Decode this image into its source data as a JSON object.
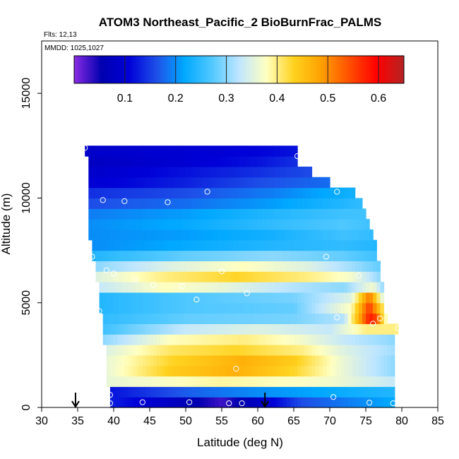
{
  "chart_data": {
    "type": "heatmap",
    "title": "ATOM3 Northeast_Pacific_2 BioBurnFrac_PALMS",
    "subtitle_flights": "Flts: 12,13",
    "subtitle_dates": "MMDD: 1025,1027",
    "xlabel": "Latitude (deg N)",
    "ylabel": "Altitude (m)",
    "xlim": [
      30,
      85
    ],
    "ylim": [
      0,
      17500
    ],
    "xticks": [
      30,
      35,
      40,
      45,
      50,
      55,
      60,
      65,
      70,
      75,
      80,
      85
    ],
    "yticks": [
      0,
      5000,
      10000,
      15000
    ],
    "colorbar": {
      "range": [
        0,
        0.65
      ],
      "ticks": [
        0.1,
        0.2,
        0.3,
        0.4,
        0.5,
        0.6
      ],
      "colors": [
        "#8a2be2",
        "#0000b0",
        "#0000d8",
        "#1e50e8",
        "#00a8ff",
        "#50c8ff",
        "#bfe6ff",
        "#ffffc0",
        "#ffd21e",
        "#ffa000",
        "#ff5000",
        "#ff0000",
        "#b42323"
      ]
    },
    "altitude_bins_m": [
      250,
      750,
      1250,
      1750,
      2250,
      2750,
      3250,
      3750,
      4250,
      4750,
      5250,
      5750,
      6250,
      6750,
      7250,
      7750,
      8250,
      8750,
      9250,
      9750,
      10250,
      10750,
      11250,
      11750,
      12250
    ],
    "profiles": [
      {
        "altitude": 250,
        "lat_range": [
          39.5,
          79
        ],
        "values": [
          [
            39.5,
            0.13
          ],
          [
            48,
            0.08
          ],
          [
            55,
            0.03
          ],
          [
            60,
            0.08
          ],
          [
            66,
            0.16
          ],
          [
            79,
            0.22
          ]
        ]
      },
      {
        "altitude": 750,
        "lat_range": [
          39.5,
          79
        ],
        "values": [
          [
            39.5,
            0.12
          ],
          [
            50,
            0.17
          ],
          [
            60,
            0.2
          ],
          [
            70,
            0.22
          ],
          [
            79,
            0.24
          ]
        ]
      },
      {
        "altitude": 1250,
        "lat_range": [
          39,
          79
        ],
        "values": [
          [
            39,
            0.36
          ],
          [
            55,
            0.39
          ],
          [
            70,
            0.37
          ],
          [
            79,
            0.33
          ]
        ]
      },
      {
        "altitude": 1750,
        "lat_range": [
          39,
          79
        ],
        "values": [
          [
            39,
            0.36
          ],
          [
            48,
            0.44
          ],
          [
            57,
            0.47
          ],
          [
            65,
            0.43
          ],
          [
            72,
            0.36
          ],
          [
            79,
            0.3
          ]
        ]
      },
      {
        "altitude": 2250,
        "lat_range": [
          39,
          79
        ],
        "values": [
          [
            39,
            0.36
          ],
          [
            48,
            0.43
          ],
          [
            58,
            0.47
          ],
          [
            65,
            0.44
          ],
          [
            72,
            0.36
          ],
          [
            79,
            0.3
          ]
        ]
      },
      {
        "altitude": 2750,
        "lat_range": [
          39,
          79
        ],
        "values": [
          [
            39,
            0.35
          ],
          [
            48,
            0.41
          ],
          [
            57,
            0.43
          ],
          [
            66,
            0.4
          ],
          [
            72,
            0.35
          ],
          [
            79,
            0.31
          ]
        ]
      },
      {
        "altitude": 3250,
        "lat_range": [
          38.5,
          79
        ],
        "values": [
          [
            38.5,
            0.3
          ],
          [
            48,
            0.38
          ],
          [
            58,
            0.4
          ],
          [
            66,
            0.37
          ],
          [
            72,
            0.33
          ],
          [
            79,
            0.3
          ]
        ]
      },
      {
        "altitude": 3750,
        "lat_range": [
          38.5,
          79.5
        ],
        "values": [
          [
            38.5,
            0.26
          ],
          [
            50,
            0.33
          ],
          [
            60,
            0.35
          ],
          [
            70,
            0.33
          ],
          [
            75,
            0.4
          ],
          [
            79.5,
            0.4
          ]
        ]
      },
      {
        "altitude": 4250,
        "lat_range": [
          38.5,
          78
        ],
        "values": [
          [
            38.5,
            0.25
          ],
          [
            50,
            0.28
          ],
          [
            65,
            0.29
          ],
          [
            72,
            0.32
          ],
          [
            75.5,
            0.58
          ],
          [
            76.5,
            0.55
          ],
          [
            78,
            0.35
          ]
        ]
      },
      {
        "altitude": 4750,
        "lat_range": [
          38,
          77.5
        ],
        "values": [
          [
            38,
            0.24
          ],
          [
            50,
            0.27
          ],
          [
            65,
            0.28
          ],
          [
            73,
            0.38
          ],
          [
            75.5,
            0.56
          ],
          [
            77.5,
            0.4
          ]
        ]
      },
      {
        "altitude": 5250,
        "lat_range": [
          38,
          77.5
        ],
        "values": [
          [
            38,
            0.24
          ],
          [
            50,
            0.27
          ],
          [
            65,
            0.29
          ],
          [
            73,
            0.35
          ],
          [
            75.5,
            0.52
          ],
          [
            77.5,
            0.34
          ]
        ]
      },
      {
        "altitude": 5750,
        "lat_range": [
          38,
          77.5
        ],
        "values": [
          [
            38,
            0.33
          ],
          [
            47,
            0.38
          ],
          [
            55,
            0.36
          ],
          [
            65,
            0.32
          ],
          [
            72,
            0.3
          ],
          [
            76,
            0.37
          ],
          [
            77.5,
            0.3
          ]
        ]
      },
      {
        "altitude": 6250,
        "lat_range": [
          37.5,
          77
        ],
        "values": [
          [
            37.5,
            0.35
          ],
          [
            47,
            0.4
          ],
          [
            57,
            0.43
          ],
          [
            67,
            0.4
          ],
          [
            73,
            0.37
          ],
          [
            77,
            0.3
          ]
        ]
      },
      {
        "altitude": 6750,
        "lat_range": [
          37.5,
          77
        ],
        "values": [
          [
            37.5,
            0.3
          ],
          [
            48,
            0.35
          ],
          [
            58,
            0.38
          ],
          [
            67,
            0.35
          ],
          [
            73,
            0.31
          ],
          [
            77,
            0.28
          ]
        ]
      },
      {
        "altitude": 7250,
        "lat_range": [
          37,
          76.5
        ],
        "values": [
          [
            37,
            0.24
          ],
          [
            50,
            0.28
          ],
          [
            62,
            0.3
          ],
          [
            72,
            0.28
          ],
          [
            76.5,
            0.26
          ]
        ]
      },
      {
        "altitude": 7750,
        "lat_range": [
          37,
          76.5
        ],
        "values": [
          [
            37,
            0.2
          ],
          [
            50,
            0.22
          ],
          [
            62,
            0.24
          ],
          [
            72,
            0.25
          ],
          [
            76.5,
            0.24
          ]
        ]
      },
      {
        "altitude": 8250,
        "lat_range": [
          36.5,
          76
        ],
        "values": [
          [
            36.5,
            0.2
          ],
          [
            50,
            0.21
          ],
          [
            62,
            0.23
          ],
          [
            72,
            0.26
          ],
          [
            76,
            0.25
          ]
        ]
      },
      {
        "altitude": 8750,
        "lat_range": [
          36.5,
          75.5
        ],
        "values": [
          [
            36.5,
            0.2
          ],
          [
            50,
            0.22
          ],
          [
            62,
            0.25
          ],
          [
            72,
            0.27
          ],
          [
            75.5,
            0.26
          ]
        ]
      },
      {
        "altitude": 9250,
        "lat_range": [
          36.5,
          75
        ],
        "values": [
          [
            36.5,
            0.19
          ],
          [
            50,
            0.21
          ],
          [
            62,
            0.24
          ],
          [
            72,
            0.26
          ],
          [
            75,
            0.26
          ]
        ]
      },
      {
        "altitude": 9750,
        "lat_range": [
          36.5,
          74.5
        ],
        "values": [
          [
            36.5,
            0.16
          ],
          [
            50,
            0.18
          ],
          [
            62,
            0.21
          ],
          [
            72,
            0.24
          ],
          [
            74.5,
            0.25
          ]
        ]
      },
      {
        "altitude": 10250,
        "lat_range": [
          36.5,
          73.5
        ],
        "values": [
          [
            36.5,
            0.14
          ],
          [
            50,
            0.16
          ],
          [
            62,
            0.19
          ],
          [
            70,
            0.22
          ],
          [
            73.5,
            0.23
          ]
        ]
      },
      {
        "altitude": 10750,
        "lat_range": [
          36.5,
          70
        ],
        "values": [
          [
            36.5,
            0.1
          ],
          [
            50,
            0.13
          ],
          [
            60,
            0.16
          ],
          [
            70,
            0.18
          ]
        ]
      },
      {
        "altitude": 11250,
        "lat_range": [
          36.5,
          67.5
        ],
        "values": [
          [
            36.5,
            0.09
          ],
          [
            50,
            0.12
          ],
          [
            60,
            0.14
          ],
          [
            67.5,
            0.16
          ]
        ]
      },
      {
        "altitude": 11750,
        "lat_range": [
          36.5,
          65.5
        ],
        "values": [
          [
            36.5,
            0.08
          ],
          [
            50,
            0.1
          ],
          [
            60,
            0.12
          ],
          [
            65.5,
            0.14
          ]
        ]
      },
      {
        "altitude": 12250,
        "lat_range": [
          36,
          65.5
        ],
        "values": [
          [
            36,
            0.09
          ],
          [
            50,
            0.1
          ],
          [
            60,
            0.11
          ],
          [
            65.5,
            0.12
          ]
        ]
      }
    ],
    "sample_points": [
      {
        "x": 36,
        "y": 12400
      },
      {
        "x": 65.5,
        "y": 12000
      },
      {
        "x": 38.5,
        "y": 9900
      },
      {
        "x": 41.5,
        "y": 9850
      },
      {
        "x": 47.5,
        "y": 9800
      },
      {
        "x": 53,
        "y": 10300
      },
      {
        "x": 71,
        "y": 10300
      },
      {
        "x": 37,
        "y": 7200
      },
      {
        "x": 69.5,
        "y": 7200
      },
      {
        "x": 39,
        "y": 6550
      },
      {
        "x": 40,
        "y": 6400
      },
      {
        "x": 43,
        "y": 6100
      },
      {
        "x": 45.5,
        "y": 5850
      },
      {
        "x": 49.5,
        "y": 5800
      },
      {
        "x": 55,
        "y": 6500
      },
      {
        "x": 74,
        "y": 6300
      },
      {
        "x": 58.5,
        "y": 5450
      },
      {
        "x": 51.5,
        "y": 5150
      },
      {
        "x": 38,
        "y": 4600
      },
      {
        "x": 71,
        "y": 4300
      },
      {
        "x": 77,
        "y": 4250
      },
      {
        "x": 76,
        "y": 4000
      },
      {
        "x": 79.5,
        "y": 3800
      },
      {
        "x": 57,
        "y": 1850
      },
      {
        "x": 39.5,
        "y": 600
      },
      {
        "x": 70.5,
        "y": 500
      },
      {
        "x": 39.5,
        "y": 200
      },
      {
        "x": 44,
        "y": 250
      },
      {
        "x": 50.5,
        "y": 250
      },
      {
        "x": 56,
        "y": 200
      },
      {
        "x": 57.8,
        "y": 200
      },
      {
        "x": 75.5,
        "y": 230
      },
      {
        "x": 78.8,
        "y": 200
      }
    ],
    "arrows_lat": [
      34.7,
      61
    ]
  }
}
